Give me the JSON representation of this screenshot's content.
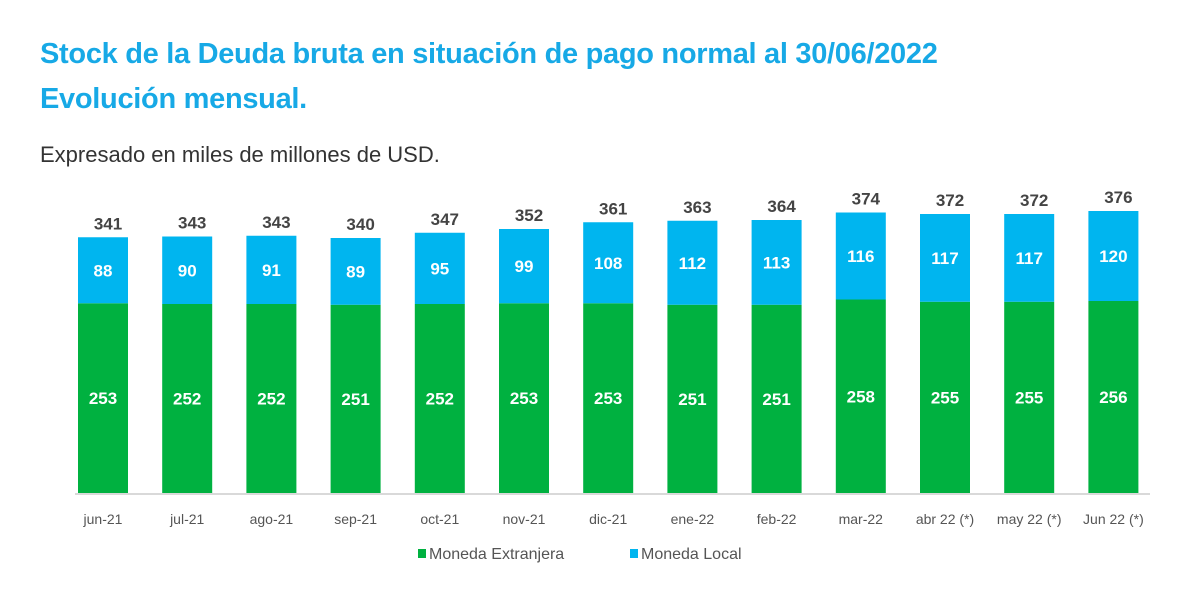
{
  "chart_data": {
    "type": "bar",
    "stacked": true,
    "title": "Stock de la Deuda bruta en situación de pago normal al 30/06/2022",
    "title_line2": "Evolución mensual.",
    "subtitle": "Expresado en miles de millones de USD.",
    "categories": [
      "jun-21",
      "jul-21",
      "ago-21",
      "sep-21",
      "oct-21",
      "nov-21",
      "dic-21",
      "ene-22",
      "feb-22",
      "mar-22",
      "abr 22 (*)",
      "may 22 (*)",
      "Jun 22 (*)"
    ],
    "series": [
      {
        "name": "Moneda Extranjera",
        "color": "#00b140",
        "values": [
          253,
          252,
          252,
          251,
          252,
          253,
          253,
          251,
          251,
          258,
          255,
          255,
          256
        ]
      },
      {
        "name": "Moneda Local",
        "color": "#00b5ef",
        "values": [
          88,
          90,
          91,
          89,
          95,
          99,
          108,
          112,
          113,
          116,
          117,
          117,
          120
        ]
      }
    ],
    "totals": [
      341,
      343,
      343,
      340,
      347,
      352,
      361,
      363,
      364,
      374,
      372,
      372,
      376
    ],
    "legend": "bottom-center",
    "grid": false,
    "ylim": [
      0,
      390
    ]
  }
}
